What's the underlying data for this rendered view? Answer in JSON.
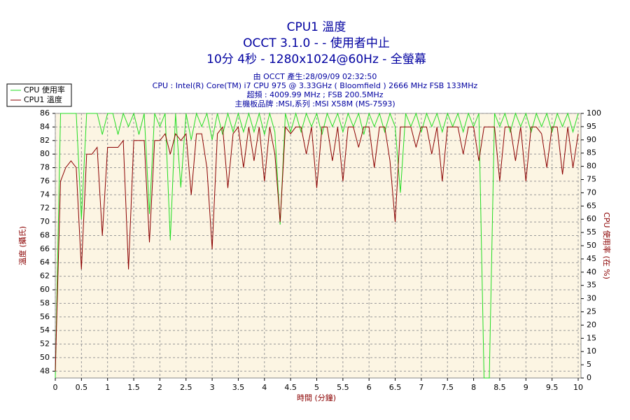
{
  "chart_data": {
    "type": "line",
    "title_lines": [
      "CPU1 溫度",
      "OCCT 3.1.0 -  - 使用者中止",
      "10分 4秒 - 1280x1024@60Hz - 全螢幕"
    ],
    "subtitle_lines": [
      "由 OCCT 產生:28/09/09 02:32:50",
      "CPU : Intel(R) Core(TM) i7 CPU 975 @ 3.33GHz ( Bloomfield ) 2666 MHz FSB 133MHz",
      "超頻 : 4009.99 MHz ; FSB 200.5MHz",
      "主機板品牌 :MSI,系列 :MSI X58M (MS-7593)"
    ],
    "xlabel": "時間 (分鐘)",
    "ylabel": "溫度 (攝氏)",
    "y2label": "CPU 使用率 (在 %)",
    "x": [
      0,
      0.1,
      0.2,
      0.3,
      0.4,
      0.5,
      0.6,
      0.7,
      0.8,
      0.9,
      1,
      1.1,
      1.2,
      1.3,
      1.4,
      1.5,
      1.6,
      1.7,
      1.8,
      1.9,
      2,
      2.1,
      2.2,
      2.3,
      2.4,
      2.5,
      2.6,
      2.7,
      2.8,
      2.9,
      3,
      3.1,
      3.2,
      3.3,
      3.4,
      3.5,
      3.6,
      3.7,
      3.8,
      3.9,
      4,
      4.1,
      4.2,
      4.3,
      4.4,
      4.5,
      4.6,
      4.7,
      4.8,
      4.9,
      5,
      5.1,
      5.2,
      5.3,
      5.4,
      5.5,
      5.6,
      5.7,
      5.8,
      5.9,
      6,
      6.1,
      6.2,
      6.3,
      6.4,
      6.5,
      6.6,
      6.7,
      6.8,
      6.9,
      7,
      7.1,
      7.2,
      7.3,
      7.4,
      7.5,
      7.6,
      7.7,
      7.8,
      7.9,
      8,
      8.1,
      8.2,
      8.3,
      8.4,
      8.5,
      8.6,
      8.7,
      8.8,
      8.9,
      9,
      9.1,
      9.2,
      9.3,
      9.4,
      9.5,
      9.6,
      9.7,
      9.8,
      9.9,
      10
    ],
    "series": [
      {
        "name": "CPU 使用率",
        "color": "#22dd22",
        "axis": "y2",
        "values": [
          0,
          100,
          100,
          100,
          100,
          60,
          100,
          100,
          100,
          92,
          100,
          100,
          92,
          100,
          95,
          100,
          92,
          100,
          62,
          100,
          95,
          100,
          52,
          100,
          72,
          100,
          90,
          100,
          95,
          100,
          90,
          100,
          92,
          100,
          93,
          100,
          93,
          100,
          93,
          100,
          92,
          100,
          93,
          58,
          100,
          93,
          100,
          93,
          100,
          95,
          100,
          92,
          100,
          95,
          100,
          93,
          100,
          95,
          100,
          92,
          100,
          95,
          100,
          93,
          100,
          95,
          70,
          100,
          95,
          100,
          93,
          100,
          95,
          100,
          93,
          100,
          95,
          100,
          93,
          100,
          95,
          100,
          0,
          0,
          100,
          95,
          100,
          93,
          100,
          95,
          100,
          93,
          100,
          95,
          100,
          93,
          100,
          95,
          100,
          93,
          100
        ]
      },
      {
        "name": "CPU1 溫度",
        "color": "#8b0000",
        "values": [
          48,
          76,
          78,
          79,
          78,
          63,
          80,
          80,
          81,
          68,
          81,
          81,
          81,
          82,
          63,
          82,
          82,
          82,
          67,
          82,
          82,
          83,
          80,
          83,
          82,
          83,
          74,
          83,
          83,
          78,
          66,
          83,
          84,
          75,
          83,
          84,
          78,
          84,
          79,
          84,
          76,
          84,
          80,
          70,
          84,
          83,
          84,
          84,
          80,
          84,
          75,
          84,
          84,
          79,
          84,
          76,
          84,
          84,
          81,
          84,
          84,
          78,
          84,
          84,
          79,
          70,
          84,
          84,
          84,
          81,
          84,
          84,
          80,
          84,
          76,
          84,
          84,
          84,
          80,
          84,
          84,
          79,
          84,
          84,
          84,
          76,
          84,
          84,
          79,
          84,
          76,
          84,
          84,
          83,
          78,
          84,
          84,
          77,
          84,
          78,
          83
        ]
      }
    ],
    "xlim": [
      0,
      10
    ],
    "xticks": [
      0,
      0.5,
      1,
      1.5,
      2,
      2.5,
      3,
      3.5,
      4,
      4.5,
      5,
      5.5,
      6,
      6.5,
      7,
      7.5,
      8,
      8.5,
      9,
      9.5,
      10
    ],
    "ylim": [
      47,
      86
    ],
    "yticks": [
      48,
      50,
      52,
      54,
      56,
      58,
      60,
      62,
      64,
      66,
      68,
      70,
      72,
      74,
      76,
      78,
      80,
      82,
      84,
      86
    ],
    "y2lim": [
      0,
      100
    ],
    "y2ticks": [
      0,
      5,
      10,
      15,
      20,
      25,
      30,
      35,
      40,
      45,
      50,
      55,
      60,
      65,
      70,
      75,
      80,
      85,
      90,
      95,
      100
    ],
    "grid": true,
    "legend": "top-left"
  }
}
